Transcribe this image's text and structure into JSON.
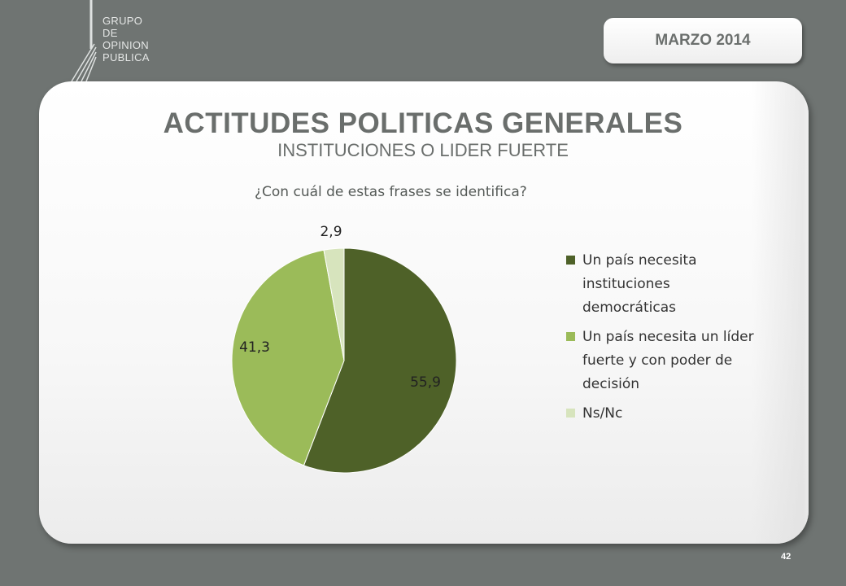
{
  "logo": {
    "lines": [
      "GRUPO",
      "DE",
      "OPINION",
      "PUBLICA"
    ]
  },
  "header": {
    "date": "MARZO 2014"
  },
  "slide": {
    "title": "ACTITUDES POLITICAS GENERALES",
    "subtitle": "INSTITUCIONES O LIDER FUERTE",
    "question": "¿Con cuál de estas frases se identifica?",
    "page_number": "42"
  },
  "chart_data": {
    "type": "pie",
    "categories": [
      "Un país necesita instituciones democráticas",
      "Un país necesita un líder fuerte y con poder de decisión",
      "Ns/Nc"
    ],
    "values": [
      55.9,
      41.3,
      2.9
    ],
    "data_labels": [
      "55,9",
      "41,3",
      "2,9"
    ],
    "colors": [
      "#4e6128",
      "#9bbb59",
      "#d7e4bd"
    ],
    "legend": "right"
  }
}
